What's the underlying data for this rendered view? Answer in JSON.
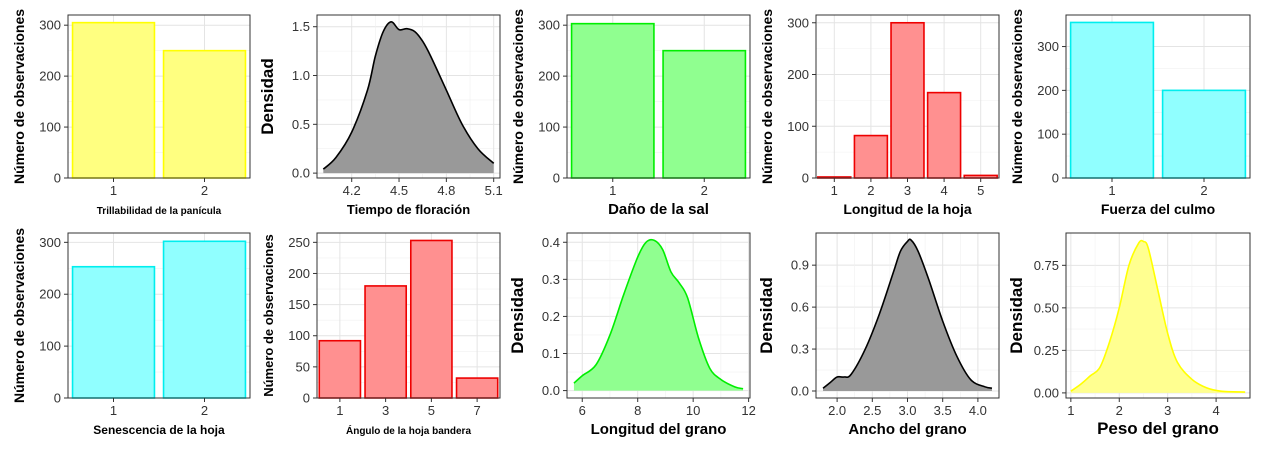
{
  "chart_data": [
    {
      "type": "bar",
      "xlabel": "Trillabilidad de la panícula",
      "ylabel": "Número de observaciones",
      "categories": [
        "1",
        "2"
      ],
      "values": [
        305,
        250
      ],
      "ylim": [
        0,
        320
      ],
      "yticks": [
        0,
        100,
        200,
        300
      ],
      "fill": "#ffff80",
      "stroke": "#ffff00",
      "grid": true
    },
    {
      "type": "area",
      "xlabel": "Tiempo de floración",
      "ylabel": "Densidad",
      "x": [
        4.02,
        4.1,
        4.2,
        4.3,
        4.35,
        4.4,
        4.45,
        4.5,
        4.55,
        4.6,
        4.65,
        4.7,
        4.8,
        4.9,
        5.0,
        5.1
      ],
      "y": [
        0.04,
        0.16,
        0.42,
        0.85,
        1.2,
        1.45,
        1.55,
        1.47,
        1.48,
        1.45,
        1.35,
        1.2,
        0.85,
        0.5,
        0.25,
        0.1
      ],
      "xlim": [
        3.98,
        5.14
      ],
      "ylim": [
        -0.05,
        1.62
      ],
      "xticks": [
        4.2,
        4.5,
        4.8,
        5.1
      ],
      "yticks": [
        0.0,
        0.5,
        1.0,
        1.5
      ],
      "fill": "#999999",
      "stroke": "#000000",
      "grid": true
    },
    {
      "type": "bar",
      "xlabel": "Daño de la sal",
      "ylabel": "Número de observaciones",
      "categories": [
        "1",
        "2"
      ],
      "values": [
        303,
        250
      ],
      "ylim": [
        0,
        320
      ],
      "yticks": [
        0,
        100,
        200,
        300
      ],
      "fill": "#90ff90",
      "stroke": "#00ee00",
      "grid": true
    },
    {
      "type": "bar",
      "xlabel": "Longitud de la hoja",
      "ylabel": "Número de observaciones",
      "categories": [
        "1",
        "2",
        "3",
        "4",
        "5"
      ],
      "values": [
        2,
        82,
        300,
        165,
        5
      ],
      "ylim": [
        0,
        315
      ],
      "yticks": [
        0,
        100,
        200,
        300
      ],
      "fill": "#ff9090",
      "stroke": "#ee0000",
      "grid": true
    },
    {
      "type": "bar",
      "xlabel": "Fuerza del culmo",
      "ylabel": "Número de observaciones",
      "categories": [
        "1",
        "2"
      ],
      "values": [
        355,
        200
      ],
      "ylim": [
        0,
        372
      ],
      "yticks": [
        0,
        100,
        200,
        300
      ],
      "fill": "#90ffff",
      "stroke": "#00eeee",
      "grid": true
    },
    {
      "type": "bar",
      "xlabel": "Senescencia de la hoja",
      "ylabel": "Número de observaciones",
      "categories": [
        "1",
        "2"
      ],
      "values": [
        253,
        302
      ],
      "ylim": [
        0,
        318
      ],
      "yticks": [
        0,
        100,
        200,
        300
      ],
      "fill": "#90ffff",
      "stroke": "#00eeee",
      "grid": true
    },
    {
      "type": "bar",
      "xlabel": "Ángulo de la hoja bandera",
      "ylabel": "Número de observaciones",
      "categories": [
        "1",
        "3",
        "5",
        "7"
      ],
      "values": [
        92,
        180,
        253,
        32
      ],
      "ylim": [
        0,
        265
      ],
      "yticks": [
        0,
        50,
        100,
        150,
        200,
        250
      ],
      "fill": "#ff9090",
      "stroke": "#ee0000",
      "grid": true
    },
    {
      "type": "area",
      "xlabel": "Longitud del grano",
      "ylabel": "Densidad",
      "x": [
        5.7,
        6.0,
        6.5,
        7.0,
        7.5,
        8.0,
        8.3,
        8.6,
        8.9,
        9.2,
        9.5,
        9.8,
        10.2,
        10.6,
        11.0,
        11.5,
        11.8
      ],
      "y": [
        0.02,
        0.04,
        0.07,
        0.15,
        0.26,
        0.36,
        0.4,
        0.405,
        0.38,
        0.32,
        0.29,
        0.25,
        0.14,
        0.06,
        0.03,
        0.01,
        0.005
      ],
      "xlim": [
        5.45,
        12.05
      ],
      "ylim": [
        -0.02,
        0.425
      ],
      "xticks": [
        6.0,
        8.0,
        10.0,
        12.0
      ],
      "yticks": [
        0.0,
        0.1,
        0.2,
        0.3,
        0.4
      ],
      "fill": "#90ff90",
      "stroke": "#00ee00",
      "grid": true
    },
    {
      "type": "area",
      "xlabel": "Ancho del grano",
      "ylabel": "Densidad",
      "x": [
        1.8,
        1.9,
        2.0,
        2.1,
        2.2,
        2.4,
        2.6,
        2.8,
        2.9,
        3.0,
        3.05,
        3.15,
        3.3,
        3.5,
        3.7,
        3.9,
        4.1,
        4.2
      ],
      "y": [
        0.02,
        0.06,
        0.1,
        0.1,
        0.12,
        0.3,
        0.55,
        0.85,
        1.0,
        1.07,
        1.08,
        1.0,
        0.8,
        0.5,
        0.25,
        0.08,
        0.03,
        0.02
      ],
      "xlim": [
        1.7,
        4.3
      ],
      "ylim": [
        -0.05,
        1.13
      ],
      "xticks": [
        2.0,
        2.5,
        3.0,
        3.5,
        4.0
      ],
      "yticks": [
        0.0,
        0.3,
        0.6,
        0.9
      ],
      "fill": "#999999",
      "stroke": "#000000",
      "grid": true
    },
    {
      "type": "area",
      "xlabel": "Peso del grano",
      "ylabel": "Densidad",
      "x": [
        1.0,
        1.2,
        1.4,
        1.6,
        1.8,
        2.0,
        2.2,
        2.4,
        2.5,
        2.6,
        2.8,
        3.0,
        3.2,
        3.5,
        3.8,
        4.1,
        4.6
      ],
      "y": [
        0.01,
        0.05,
        0.1,
        0.15,
        0.3,
        0.5,
        0.75,
        0.88,
        0.89,
        0.85,
        0.6,
        0.35,
        0.18,
        0.08,
        0.03,
        0.01,
        0.005
      ],
      "xlim": [
        0.9,
        4.7
      ],
      "ylim": [
        -0.03,
        0.94
      ],
      "xticks": [
        1.0,
        2.0,
        3.0,
        4.0
      ],
      "yticks": [
        0.0,
        0.25,
        0.5,
        0.75
      ],
      "fill": "#ffff90",
      "stroke": "#ffff00",
      "grid": true
    }
  ]
}
